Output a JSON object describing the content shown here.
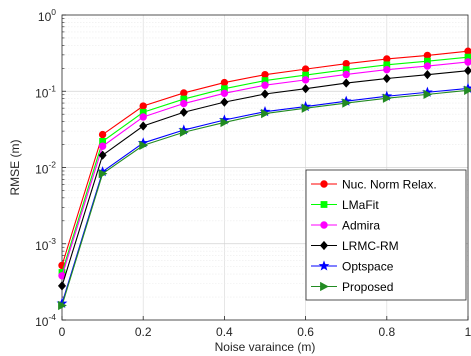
{
  "chart_data": {
    "type": "line",
    "title": "",
    "xlabel": "Noise varaince (m)",
    "ylabel": "RMSE (m)",
    "xlim": [
      0,
      1
    ],
    "ylim": [
      0.0001,
      1
    ],
    "yscale": "log",
    "grid": true,
    "legend_position": "bottom-right",
    "x": [
      0,
      0.1,
      0.2,
      0.3,
      0.4,
      0.5,
      0.6,
      0.7,
      0.8,
      0.9,
      1.0
    ],
    "x_tick_labels": [
      "0",
      "0.2",
      "0.4",
      "0.6",
      "0.8",
      "1"
    ],
    "y_tick_labels": [
      {
        "base": "10",
        "exp": "-4"
      },
      {
        "base": "10",
        "exp": "-3"
      },
      {
        "base": "10",
        "exp": "-2"
      },
      {
        "base": "10",
        "exp": "-1"
      },
      {
        "base": "10",
        "exp": "0"
      }
    ],
    "series": [
      {
        "name": "Nuc. Norm Relax.",
        "color": "#ff0000",
        "marker": "circle",
        "values": [
          0.00052,
          0.027,
          0.064,
          0.095,
          0.13,
          0.165,
          0.195,
          0.23,
          0.265,
          0.295,
          0.335
        ]
      },
      {
        "name": "LMaFit",
        "color": "#00ff00",
        "marker": "square",
        "values": [
          0.00042,
          0.022,
          0.053,
          0.079,
          0.108,
          0.138,
          0.163,
          0.192,
          0.222,
          0.248,
          0.28
        ]
      },
      {
        "name": "Admira",
        "color": "#ff00ff",
        "marker": "circle",
        "values": [
          0.00038,
          0.019,
          0.046,
          0.069,
          0.094,
          0.12,
          0.141,
          0.166,
          0.192,
          0.214,
          0.242
        ]
      },
      {
        "name": "LRMC-RM",
        "color": "#000000",
        "marker": "diamond",
        "values": [
          0.00028,
          0.0145,
          0.035,
          0.053,
          0.072,
          0.092,
          0.108,
          0.128,
          0.147,
          0.165,
          0.186
        ]
      },
      {
        "name": "Optspace",
        "color": "#0000ff",
        "marker": "star",
        "values": [
          0.000165,
          0.0088,
          0.021,
          0.031,
          0.042,
          0.054,
          0.063,
          0.074,
          0.086,
          0.097,
          0.109
        ]
      },
      {
        "name": "Proposed",
        "color": "#228b22",
        "marker": "triangle-right",
        "values": [
          0.000155,
          0.0083,
          0.0195,
          0.029,
          0.039,
          0.051,
          0.06,
          0.07,
          0.081,
          0.091,
          0.103
        ]
      }
    ]
  }
}
